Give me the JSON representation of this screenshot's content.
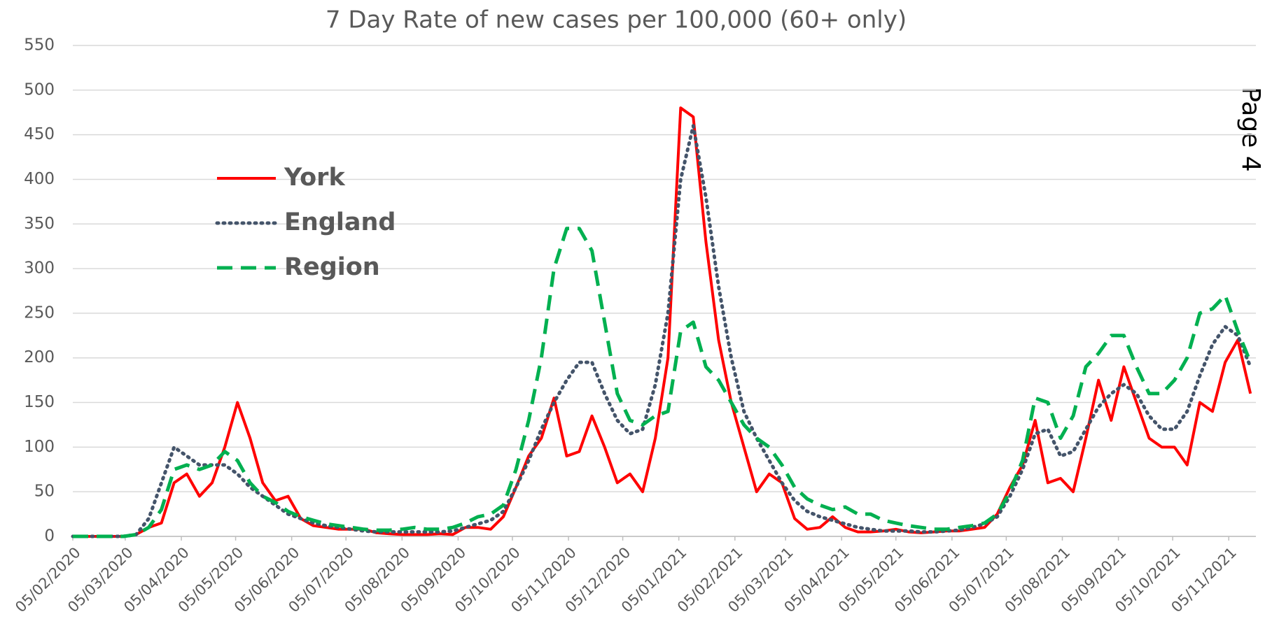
{
  "chart_data": {
    "type": "line",
    "title": "7 Day Rate of new cases per 100,000 (60+ only)",
    "page_label": "Page 4",
    "x": [
      "2020-02-05",
      "2020-02-12",
      "2020-02-19",
      "2020-02-26",
      "2020-03-04",
      "2020-03-11",
      "2020-03-18",
      "2020-03-25",
      "2020-04-01",
      "2020-04-08",
      "2020-04-15",
      "2020-04-22",
      "2020-04-29",
      "2020-05-06",
      "2020-05-13",
      "2020-05-20",
      "2020-05-27",
      "2020-06-03",
      "2020-06-10",
      "2020-06-17",
      "2020-06-24",
      "2020-07-01",
      "2020-07-08",
      "2020-07-15",
      "2020-07-22",
      "2020-07-29",
      "2020-08-05",
      "2020-08-12",
      "2020-08-19",
      "2020-08-26",
      "2020-09-02",
      "2020-09-09",
      "2020-09-16",
      "2020-09-23",
      "2020-09-30",
      "2020-10-07",
      "2020-10-14",
      "2020-10-21",
      "2020-10-28",
      "2020-11-04",
      "2020-11-11",
      "2020-11-18",
      "2020-11-25",
      "2020-12-02",
      "2020-12-09",
      "2020-12-16",
      "2020-12-23",
      "2020-12-30",
      "2021-01-06",
      "2021-01-13",
      "2021-01-20",
      "2021-01-27",
      "2021-02-03",
      "2021-02-10",
      "2021-02-17",
      "2021-02-24",
      "2021-03-03",
      "2021-03-10",
      "2021-03-17",
      "2021-03-24",
      "2021-03-31",
      "2021-04-07",
      "2021-04-14",
      "2021-04-21",
      "2021-04-28",
      "2021-05-05",
      "2021-05-12",
      "2021-05-19",
      "2021-05-26",
      "2021-06-02",
      "2021-06-09",
      "2021-06-16",
      "2021-06-23",
      "2021-06-30",
      "2021-07-07",
      "2021-07-14",
      "2021-07-21",
      "2021-07-28",
      "2021-08-04",
      "2021-08-11",
      "2021-08-18",
      "2021-08-25",
      "2021-09-01",
      "2021-09-08",
      "2021-09-15",
      "2021-09-22",
      "2021-09-29",
      "2021-10-06",
      "2021-10-13",
      "2021-10-20",
      "2021-10-27",
      "2021-11-03",
      "2021-11-10",
      "2021-11-17"
    ],
    "series": [
      {
        "name": "York",
        "color": "#ff0000",
        "dash": "solid",
        "values": [
          0,
          0,
          0,
          0,
          0,
          2,
          10,
          15,
          60,
          70,
          45,
          60,
          100,
          150,
          110,
          60,
          40,
          45,
          20,
          12,
          10,
          8,
          8,
          8,
          4,
          3,
          2,
          2,
          2,
          3,
          2,
          10,
          10,
          8,
          22,
          55,
          90,
          110,
          155,
          90,
          95,
          135,
          100,
          60,
          70,
          50,
          110,
          200,
          480,
          470,
          330,
          220,
          150,
          100,
          50,
          70,
          60,
          20,
          8,
          10,
          22,
          10,
          5,
          5,
          6,
          8,
          5,
          4,
          5,
          6,
          6,
          8,
          10,
          25,
          55,
          80,
          130,
          60,
          65,
          50,
          110,
          175,
          130,
          190,
          150,
          110,
          100,
          100,
          80,
          150,
          140,
          195,
          220,
          160
        ]
      },
      {
        "name": "England",
        "color": "#44546a",
        "dash": "dotted",
        "values": [
          0,
          0,
          0,
          0,
          0,
          2,
          20,
          60,
          100,
          90,
          80,
          80,
          80,
          70,
          55,
          45,
          35,
          25,
          20,
          15,
          12,
          10,
          8,
          6,
          5,
          5,
          5,
          5,
          5,
          5,
          6,
          10,
          14,
          18,
          28,
          55,
          85,
          120,
          150,
          175,
          195,
          195,
          160,
          130,
          115,
          120,
          170,
          250,
          400,
          460,
          380,
          280,
          200,
          140,
          110,
          85,
          60,
          40,
          28,
          22,
          18,
          14,
          10,
          8,
          6,
          6,
          6,
          5,
          5,
          6,
          7,
          10,
          14,
          22,
          45,
          75,
          115,
          120,
          90,
          95,
          120,
          145,
          160,
          170,
          160,
          135,
          120,
          120,
          140,
          180,
          215,
          235,
          225,
          190
        ]
      },
      {
        "name": "Region",
        "color": "#00b050",
        "dash": "dashed",
        "values": [
          0,
          0,
          0,
          0,
          0,
          2,
          10,
          30,
          75,
          80,
          75,
          80,
          95,
          85,
          60,
          45,
          38,
          28,
          22,
          18,
          14,
          12,
          10,
          8,
          7,
          7,
          8,
          10,
          8,
          8,
          10,
          15,
          22,
          25,
          35,
          75,
          130,
          200,
          300,
          345,
          345,
          320,
          240,
          160,
          130,
          125,
          135,
          140,
          230,
          240,
          190,
          175,
          150,
          125,
          110,
          100,
          80,
          55,
          42,
          35,
          30,
          33,
          25,
          25,
          18,
          15,
          12,
          10,
          8,
          8,
          10,
          12,
          15,
          25,
          50,
          85,
          155,
          150,
          110,
          135,
          190,
          205,
          225,
          225,
          190,
          160,
          160,
          175,
          200,
          250,
          255,
          270,
          230,
          195
        ]
      }
    ],
    "xlim": [
      "2020-02-05",
      "2021-11-20"
    ],
    "xticks": [
      {
        "value": "2020-02-05",
        "label": "05/02/2020"
      },
      {
        "value": "2020-03-05",
        "label": "05/03/2020"
      },
      {
        "value": "2020-04-05",
        "label": "05/04/2020"
      },
      {
        "value": "2020-05-05",
        "label": "05/05/2020"
      },
      {
        "value": "2020-06-05",
        "label": "05/06/2020"
      },
      {
        "value": "2020-07-05",
        "label": "05/07/2020"
      },
      {
        "value": "2020-08-05",
        "label": "05/08/2020"
      },
      {
        "value": "2020-09-05",
        "label": "05/09/2020"
      },
      {
        "value": "2020-10-05",
        "label": "05/10/2020"
      },
      {
        "value": "2020-11-05",
        "label": "05/11/2020"
      },
      {
        "value": "2020-12-05",
        "label": "05/12/2020"
      },
      {
        "value": "2021-01-05",
        "label": "05/01/2021"
      },
      {
        "value": "2021-02-05",
        "label": "05/02/2021"
      },
      {
        "value": "2021-03-05",
        "label": "05/03/2021"
      },
      {
        "value": "2021-04-05",
        "label": "05/04/2021"
      },
      {
        "value": "2021-05-05",
        "label": "05/05/2021"
      },
      {
        "value": "2021-06-05",
        "label": "05/06/2021"
      },
      {
        "value": "2021-07-05",
        "label": "05/07/2021"
      },
      {
        "value": "2021-08-05",
        "label": "05/08/2021"
      },
      {
        "value": "2021-09-05",
        "label": "05/09/2021"
      },
      {
        "value": "2021-10-05",
        "label": "05/10/2021"
      },
      {
        "value": "2021-11-05",
        "label": "05/11/2021"
      }
    ],
    "ylim": [
      0,
      550
    ],
    "yticks": [
      0,
      50,
      100,
      150,
      200,
      250,
      300,
      350,
      400,
      450,
      500,
      550
    ],
    "grid": true,
    "legend": "upper left"
  }
}
